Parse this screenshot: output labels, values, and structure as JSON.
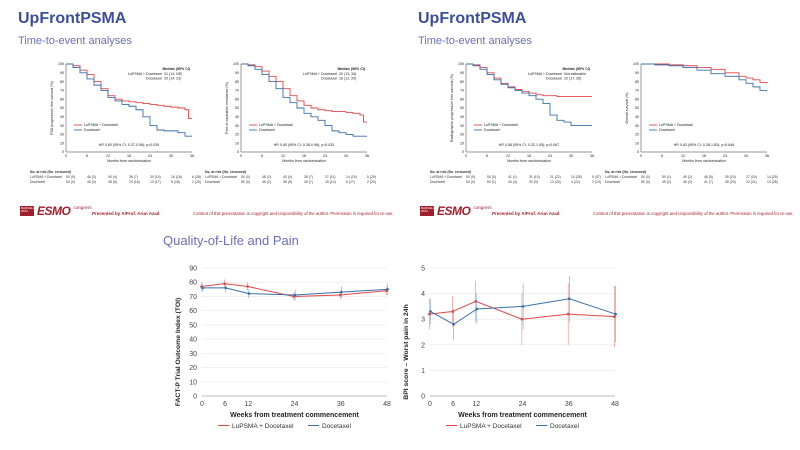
{
  "slides": [
    {
      "brand": "UpFrontPSMA",
      "subtitle": "Time-to-event analyses",
      "presented_by": "Presented by A/Prof. Arun Azad",
      "copyright": "Content of this presentation is copyright and responsibility of the author. Permission is required for re-use.",
      "logo": {
        "box_text": "BARCELONA 2024",
        "esmo": "ESMO",
        "congress": "congress"
      }
    },
    {
      "brand": "UpFrontPSMA",
      "subtitle": "Time-to-event analyses",
      "presented_by": "Presented by A/Prof. Arun Azad",
      "copyright": "Content of this presentation is copyright and responsibility of the author. Permission is required for re-use.",
      "logo": {
        "box_text": "BARCELONA 2024",
        "esmo": "ESMO",
        "congress": "congress"
      }
    }
  ],
  "qol_title": "Quality-of-Life and Pain",
  "colors": {
    "lupsma": "#e04848",
    "docetaxel": "#3b6fa8",
    "brand": "#3d4f9a",
    "sub": "#6b6fb5",
    "esmo": "#a11f2c"
  },
  "chart_data": [
    {
      "type": "line",
      "subtype": "kaplan-meier",
      "ylabel": "PSA progression free survival (%)",
      "xlabel": "Months from randomisation",
      "xlim": [
        0,
        36
      ],
      "ylim": [
        0,
        100
      ],
      "xticks": [
        0,
        6,
        12,
        18,
        24,
        30,
        36
      ],
      "yticks": [
        0,
        10,
        20,
        30,
        40,
        50,
        60,
        70,
        80,
        90,
        100
      ],
      "median_header": "Median (95% CI)",
      "legend": [
        "LuPSMA + Docetaxel",
        "Docetaxel"
      ],
      "hr_text": "HR 0.60 (95% CI: 0.37-0.98); p=0.039",
      "medians": [
        "31 (14, NE)",
        "20 (14, 23)"
      ],
      "series": [
        {
          "name": "LuPSMA + Docetaxel",
          "x": [
            0,
            2,
            4,
            6,
            8,
            10,
            12,
            14,
            16,
            18,
            20,
            22,
            24,
            26,
            28,
            30,
            32,
            34,
            35,
            36
          ],
          "values": [
            100,
            98,
            93,
            88,
            80,
            72,
            64,
            60,
            58,
            57,
            56,
            55,
            54,
            53,
            52,
            51,
            50,
            48,
            38,
            38
          ]
        },
        {
          "name": "Docetaxel",
          "x": [
            0,
            2,
            4,
            6,
            8,
            10,
            12,
            14,
            16,
            18,
            20,
            22,
            24,
            26,
            28,
            30,
            32,
            34,
            36
          ],
          "values": [
            100,
            96,
            90,
            83,
            76,
            70,
            62,
            58,
            54,
            52,
            48,
            40,
            30,
            25,
            24,
            24,
            22,
            18,
            18
          ]
        }
      ],
      "at_risk_header": "No. at risk (No. censored)",
      "at_risk": [
        {
          "label": "LuPSMA + Docetaxel",
          "counts": [
            "50 (0)",
            "46 (2)",
            "40 (4)",
            "36 (7)",
            "30 (10)",
            "16 (18)",
            "6 (28)"
          ]
        },
        {
          "label": "Docetaxel",
          "counts": [
            "50 (0)",
            "46 (0)",
            "38 (6)",
            "24 (16)",
            "13 (17)",
            "6 (18)",
            "2 (20)"
          ]
        }
      ]
    },
    {
      "type": "line",
      "subtype": "kaplan-meier",
      "ylabel": "Free of castration resistance (%)",
      "xlabel": "Months from randomisation",
      "xlim": [
        0,
        36
      ],
      "ylim": [
        0,
        100
      ],
      "xticks": [
        0,
        6,
        12,
        18,
        24,
        30,
        36
      ],
      "yticks": [
        0,
        10,
        20,
        30,
        40,
        50,
        60,
        70,
        80,
        90,
        100
      ],
      "median_header": "Median (95% CI)",
      "legend": [
        "LuPSMA + Docetaxel",
        "Docetaxel"
      ],
      "hr_text": "HR 0.60 (95% CI: 0.38-0.96); p=0.033",
      "medians": [
        "20 (13, 34)",
        "16 (12, 20)"
      ],
      "series": [
        {
          "name": "LuPSMA + Docetaxel",
          "x": [
            0,
            2,
            4,
            6,
            8,
            10,
            12,
            14,
            16,
            18,
            20,
            22,
            24,
            26,
            28,
            30,
            32,
            34,
            35,
            36
          ],
          "values": [
            100,
            99,
            97,
            92,
            86,
            80,
            72,
            64,
            58,
            53,
            50,
            48,
            47,
            46,
            46,
            45,
            44,
            42,
            34,
            34
          ]
        },
        {
          "name": "Docetaxel",
          "x": [
            0,
            2,
            4,
            6,
            8,
            10,
            12,
            14,
            16,
            18,
            20,
            22,
            24,
            26,
            28,
            30,
            32,
            34,
            36
          ],
          "values": [
            100,
            98,
            94,
            88,
            80,
            72,
            62,
            56,
            50,
            44,
            40,
            36,
            30,
            24,
            22,
            20,
            18,
            18,
            18
          ]
        }
      ],
      "at_risk_header": "No. at risk (No. censored)",
      "at_risk": [
        {
          "label": "LuPSMA + Docetaxel",
          "counts": [
            "50 (0)",
            "48 (2)",
            "40 (4)",
            "35 (7)",
            "27 (11)",
            "14 (19)",
            "5 (29)"
          ]
        },
        {
          "label": "Docetaxel",
          "counts": [
            "50 (0)",
            "45 (2)",
            "35 (8)",
            "26 (7)",
            "15 (14)",
            "6 (17)",
            "2 (20)"
          ]
        }
      ]
    },
    {
      "type": "line",
      "subtype": "kaplan-meier",
      "ylabel": "Radiographic progression free survival (%)",
      "xlabel": "Months from randomisation",
      "xlim": [
        0,
        36
      ],
      "ylim": [
        0,
        100
      ],
      "xticks": [
        0,
        6,
        12,
        18,
        24,
        30,
        36
      ],
      "yticks": [
        0,
        10,
        20,
        30,
        40,
        50,
        60,
        70,
        80,
        90,
        100
      ],
      "median_header": "Median (95% CI)",
      "legend": [
        "LuPSMA + Docetaxel",
        "Docetaxel"
      ],
      "hr_text": "HR 0.58 (95% CI: 0.32-1.05); p=0.067",
      "medians": [
        "Not estimable",
        "22 (17, 26)"
      ],
      "series": [
        {
          "name": "LuPSMA + Docetaxel",
          "x": [
            0,
            2,
            4,
            6,
            8,
            10,
            12,
            14,
            16,
            18,
            20,
            22,
            24,
            26,
            28,
            30,
            32,
            34,
            36
          ],
          "values": [
            100,
            99,
            96,
            90,
            84,
            78,
            74,
            71,
            69,
            67,
            65,
            64,
            64,
            63,
            63,
            63,
            63,
            63,
            63
          ]
        },
        {
          "name": "Docetaxel",
          "x": [
            0,
            2,
            4,
            6,
            8,
            10,
            12,
            14,
            16,
            18,
            20,
            22,
            24,
            26,
            28,
            30,
            32,
            34,
            36
          ],
          "values": [
            100,
            98,
            94,
            88,
            82,
            77,
            73,
            70,
            67,
            64,
            60,
            55,
            42,
            36,
            34,
            30,
            30,
            30,
            30
          ]
        }
      ],
      "at_risk_header": "No. at risk (No. censored)",
      "at_risk": [
        {
          "label": "LuPSMA + Docetaxel",
          "counts": [
            "50 (0)",
            "50 (0)",
            "41 (1)",
            "31 (10)",
            "21 (22)",
            "10 (28)",
            "5 (37)"
          ]
        },
        {
          "label": "Docetaxel",
          "counts": [
            "50 (0)",
            "50 (1)",
            "40 (4)",
            "33 (9)",
            "13 (20)",
            "4 (22)",
            "2 (24)"
          ]
        }
      ]
    },
    {
      "type": "line",
      "subtype": "kaplan-meier",
      "ylabel": "Overall survival (%)",
      "xlabel": "Months from randomisation",
      "xlim": [
        0,
        36
      ],
      "ylim": [
        0,
        100
      ],
      "xticks": [
        0,
        6,
        12,
        18,
        24,
        30,
        36
      ],
      "yticks": [
        0,
        10,
        20,
        30,
        40,
        50,
        60,
        70,
        80,
        90,
        100
      ],
      "median_header": "",
      "legend": [
        "LuPSMA + Docetaxel",
        "Docetaxel"
      ],
      "hr_text": "HR 0.83 (95% CI: 0.38-1.83); p=0.646",
      "medians": [],
      "series": [
        {
          "name": "LuPSMA + Docetaxel",
          "x": [
            0,
            4,
            8,
            12,
            16,
            20,
            24,
            28,
            30,
            32,
            34,
            36
          ],
          "values": [
            100,
            100,
            99,
            98,
            96,
            94,
            90,
            86,
            84,
            82,
            79,
            78
          ]
        },
        {
          "name": "Docetaxel",
          "x": [
            0,
            4,
            8,
            12,
            16,
            20,
            24,
            28,
            30,
            32,
            34,
            36
          ],
          "values": [
            100,
            99,
            98,
            96,
            93,
            89,
            86,
            82,
            78,
            74,
            70,
            70
          ]
        }
      ],
      "at_risk_header": "No. at risk (No. censored)",
      "at_risk": [
        {
          "label": "LuPSMA + Docetaxel",
          "counts": [
            "50 (0)",
            "50 (1)",
            "49 (2)",
            "46 (5)",
            "39 (10)",
            "27 (20)",
            "14 (29)"
          ]
        },
        {
          "label": "Docetaxel",
          "counts": [
            "50 (0)",
            "49 (2)",
            "46 (3)",
            "41 (7)",
            "38 (23)",
            "24 (21)",
            "13 (28)"
          ]
        }
      ]
    },
    {
      "type": "line",
      "title": "",
      "ylabel": "FACT-P Trial Outcome Index (TOI)",
      "xlabel": "Weeks from treatment commencement",
      "xlim": [
        0,
        48
      ],
      "ylim": [
        0,
        90
      ],
      "xticks": [
        0,
        6,
        12,
        24,
        36,
        48
      ],
      "yticks": [
        0,
        10,
        20,
        30,
        40,
        50,
        60,
        70,
        80,
        90
      ],
      "series": [
        {
          "name": "LuPSMA + Docetaxel",
          "x": [
            0,
            6,
            12,
            24,
            36,
            48
          ],
          "values": [
            77,
            79,
            77,
            70,
            71,
            74
          ],
          "err": [
            3,
            3,
            3,
            3,
            3,
            3
          ]
        },
        {
          "name": "Docetaxel",
          "x": [
            0,
            6,
            12,
            24,
            36,
            48
          ],
          "values": [
            76,
            76,
            72,
            71,
            73,
            75
          ],
          "err": [
            3,
            3,
            3,
            4,
            4,
            4
          ]
        }
      ],
      "legend": [
        "LuPSMA + Docetaxel",
        "Docetaxel"
      ]
    },
    {
      "type": "line",
      "title": "",
      "ylabel": "BPI score – Worst pain in 24h",
      "xlabel": "Weeks from treatment commencement",
      "xlim": [
        0,
        48
      ],
      "ylim": [
        0,
        5
      ],
      "xticks": [
        0,
        6,
        12,
        24,
        36,
        48
      ],
      "yticks": [
        0,
        1,
        2,
        3,
        4,
        5
      ],
      "series": [
        {
          "name": "LuPSMA + Docetaxel",
          "x": [
            0,
            6,
            12,
            24,
            36,
            48
          ],
          "values": [
            3.2,
            3.3,
            3.7,
            3.0,
            3.2,
            3.1
          ],
          "err": [
            0.6,
            0.6,
            0.8,
            1.0,
            1.2,
            1.2
          ]
        },
        {
          "name": "Docetaxel",
          "x": [
            0,
            6,
            12,
            24,
            36,
            48
          ],
          "values": [
            3.3,
            2.8,
            3.4,
            3.5,
            3.8,
            3.2
          ],
          "err": [
            0.5,
            0.6,
            0.6,
            0.9,
            0.9,
            1.1
          ]
        }
      ],
      "legend": [
        "LuPSMA + Docetaxel",
        "Docetaxel"
      ]
    }
  ]
}
